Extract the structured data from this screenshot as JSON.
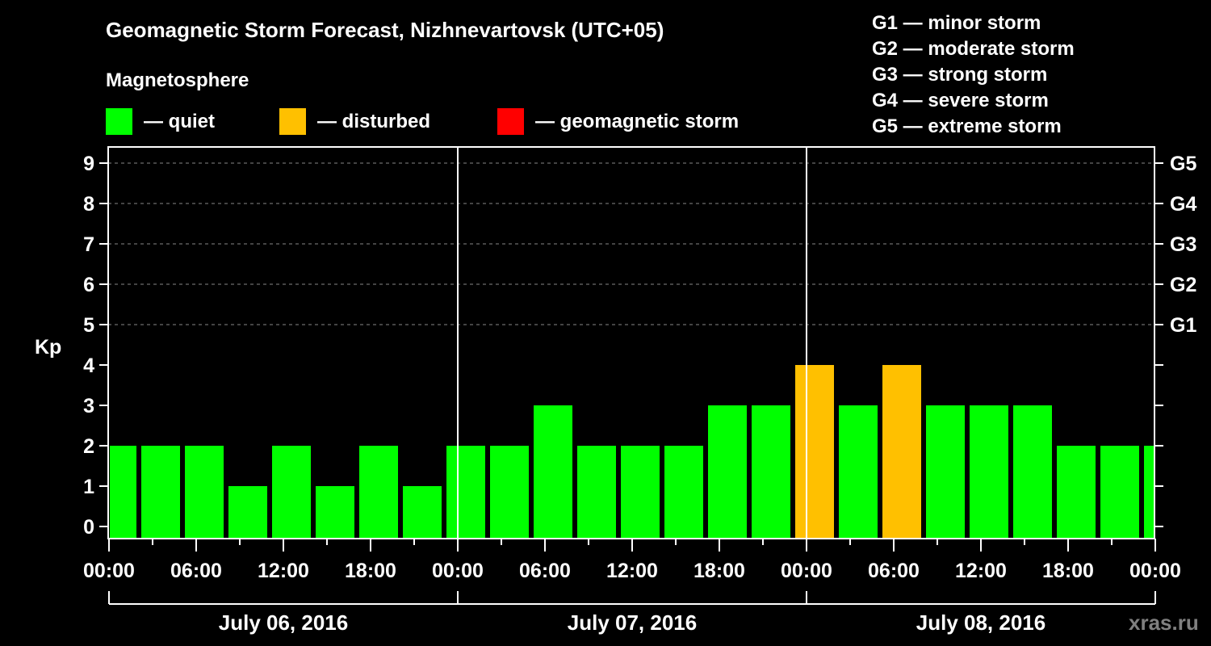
{
  "header": {
    "title": "Geomagnetic Storm Forecast, Nizhnevartovsk (UTC+05)",
    "subtitle": "Magnetosphere"
  },
  "legend": [
    {
      "label": "— quiet",
      "color": "#00ff00"
    },
    {
      "label": "— disturbed",
      "color": "#ffc000"
    },
    {
      "label": "— geomagnetic storm",
      "color": "#ff0000"
    }
  ],
  "g_scale": [
    "G1 — minor storm",
    "G2 — moderate storm",
    "G3 — strong storm",
    "G4 — severe storm",
    "G5 — extreme storm"
  ],
  "watermark": "xras.ru",
  "chart_data": {
    "type": "bar",
    "title": "Geomagnetic Storm Forecast, Nizhnevartovsk (UTC+05)",
    "xlabel": "",
    "ylabel": "Kp",
    "ylim": [
      0,
      9
    ],
    "y_ticks": [
      0,
      1,
      2,
      3,
      4,
      5,
      6,
      7,
      8,
      9
    ],
    "right_axis_labels": [
      {
        "kp": 5,
        "label": "G1"
      },
      {
        "kp": 6,
        "label": "G2"
      },
      {
        "kp": 7,
        "label": "G3"
      },
      {
        "kp": 8,
        "label": "G4"
      },
      {
        "kp": 9,
        "label": "G5"
      }
    ],
    "grid": "dashed horizontal at Kp 5-9",
    "x_tick_labels": [
      "00:00",
      "06:00",
      "12:00",
      "18:00",
      "00:00",
      "06:00",
      "12:00",
      "18:00",
      "00:00",
      "06:00",
      "12:00",
      "18:00",
      "00:00"
    ],
    "date_labels": [
      "July 06, 2016",
      "July 07, 2016",
      "July 08, 2016"
    ],
    "interval_hours": 3,
    "categories": [
      "Jul 06 00:00",
      "Jul 06 03:00",
      "Jul 06 06:00",
      "Jul 06 09:00",
      "Jul 06 12:00",
      "Jul 06 15:00",
      "Jul 06 18:00",
      "Jul 06 21:00",
      "Jul 07 00:00",
      "Jul 07 03:00",
      "Jul 07 06:00",
      "Jul 07 09:00",
      "Jul 07 12:00",
      "Jul 07 15:00",
      "Jul 07 18:00",
      "Jul 07 21:00",
      "Jul 08 00:00",
      "Jul 08 03:00",
      "Jul 08 06:00",
      "Jul 08 09:00",
      "Jul 08 12:00",
      "Jul 08 15:00",
      "Jul 08 18:00",
      "Jul 08 21:00",
      "Jul 09 00:00"
    ],
    "values": [
      2,
      2,
      2,
      1,
      2,
      1,
      2,
      1,
      2,
      2,
      3,
      2,
      2,
      2,
      3,
      3,
      4,
      3,
      4,
      3,
      3,
      3,
      2,
      2,
      2
    ],
    "colors": {
      "quiet": "#00ff00",
      "disturbed": "#ffc000",
      "storm": "#ff0000"
    },
    "thresholds": {
      "disturbed_min": 4,
      "storm_min": 5
    }
  }
}
